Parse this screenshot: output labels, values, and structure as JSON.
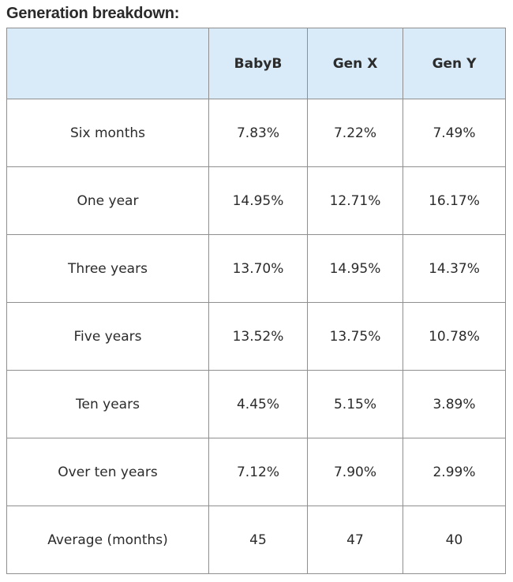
{
  "title": "Generation breakdown:",
  "chart_data": {
    "type": "table",
    "columns": [
      "",
      "BabyB",
      "Gen X",
      "Gen Y"
    ],
    "rows": [
      [
        "Six months",
        "7.83%",
        "7.22%",
        "7.49%"
      ],
      [
        "One year",
        "14.95%",
        "12.71%",
        "16.17%"
      ],
      [
        "Three years",
        "13.70%",
        "14.95%",
        "14.37%"
      ],
      [
        "Five years",
        "13.52%",
        "13.75%",
        "10.78%"
      ],
      [
        "Ten years",
        "4.45%",
        "5.15%",
        "3.89%"
      ],
      [
        "Over ten years",
        "7.12%",
        "7.90%",
        "2.99%"
      ],
      [
        "Average (months)",
        "45",
        "47",
        "40"
      ]
    ],
    "header_bg": "#d9ebf8",
    "border_color": "#8f8f8f"
  }
}
